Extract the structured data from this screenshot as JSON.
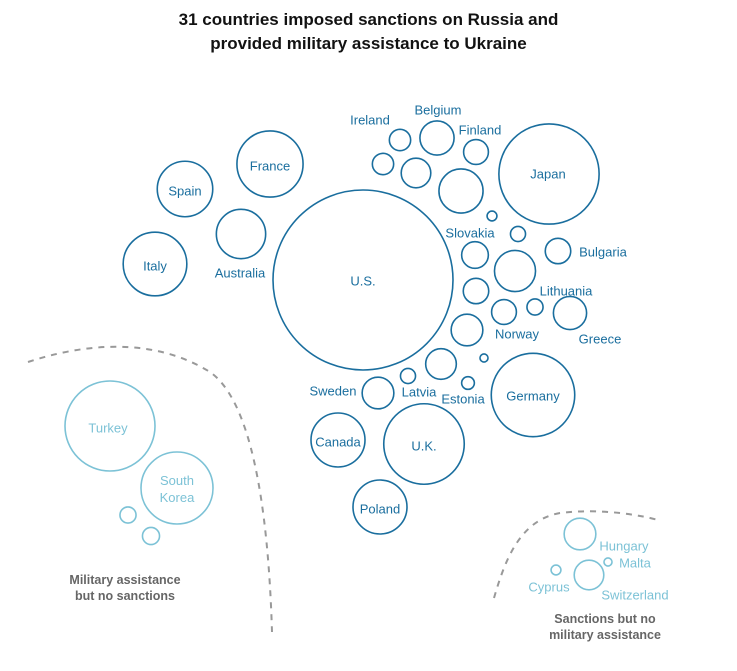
{
  "title_line1": "31 countries imposed sanctions on Russia and",
  "title_line2": "provided military assistance to Ukraine",
  "colors": {
    "main": "#1a6e9e",
    "light": "#7cc2d6",
    "dash": "#999999",
    "group_label": "#666666",
    "title": "#121212"
  },
  "chart_data": {
    "type": "bubble-cluster",
    "title": "31 countries imposed sanctions on Russia and provided military assistance to Ukraine",
    "groups": [
      {
        "name": "sanctions-and-assistance",
        "label": "",
        "bubbles": [
          {
            "label": "U.S.",
            "size": 1.0
          },
          {
            "label": "Japan",
            "size": 0.31
          },
          {
            "label": "Germany",
            "size": 0.215
          },
          {
            "label": "U.K.",
            "size": 0.2
          },
          {
            "label": "France",
            "size": 0.135
          },
          {
            "label": "Italy",
            "size": 0.125
          },
          {
            "label": "Spain",
            "size": 0.095
          },
          {
            "label": "Canada",
            "size": 0.09
          },
          {
            "label": "Poland",
            "size": 0.09
          },
          {
            "label": "Australia",
            "size": 0.075
          },
          {
            "label": "Belgium",
            "size": 0.036
          },
          {
            "label": "Ireland",
            "size": 0.014
          },
          {
            "label": "Finland",
            "size": 0.019
          },
          {
            "label": "Bulgaria",
            "size": 0.02
          },
          {
            "label": "Lithuania",
            "size": 0.008
          },
          {
            "label": "Greece",
            "size": 0.034
          },
          {
            "label": "Norway",
            "size": 0.019
          },
          {
            "label": "Sweden",
            "size": 0.031
          },
          {
            "label": "Latvia",
            "size": 0.007
          },
          {
            "label": "Estonia",
            "size": 0.005
          },
          {
            "label": "Slovakia",
            "size": 0.007
          },
          {
            "label": "",
            "size": 0.06
          },
          {
            "label": "",
            "size": 0.014
          },
          {
            "label": "",
            "size": 0.027
          },
          {
            "label": "",
            "size": 0.052
          },
          {
            "label": "",
            "size": 0.022
          },
          {
            "label": "",
            "size": 0.02
          },
          {
            "label": "",
            "size": 0.031
          },
          {
            "label": "",
            "size": 0.029
          },
          {
            "label": "",
            "size": 0.003
          },
          {
            "label": "",
            "size": 0.002
          }
        ]
      },
      {
        "name": "assistance-no-sanctions",
        "label": "Military assistance but no sanctions",
        "bubbles": [
          {
            "label": "Turkey",
            "size": 0.25
          },
          {
            "label": "South Korea",
            "size": 0.16
          },
          {
            "label": "",
            "size": 0.008
          },
          {
            "label": "",
            "size": 0.009
          }
        ]
      },
      {
        "name": "sanctions-no-assistance",
        "label": "Sanctions but no military assistance",
        "bubbles": [
          {
            "label": "Hungary",
            "size": 0.031
          },
          {
            "label": "Switzerland",
            "size": 0.027
          },
          {
            "label": "Cyprus",
            "size": 0.003
          },
          {
            "label": "Malta",
            "size": 0.002
          }
        ]
      }
    ]
  }
}
